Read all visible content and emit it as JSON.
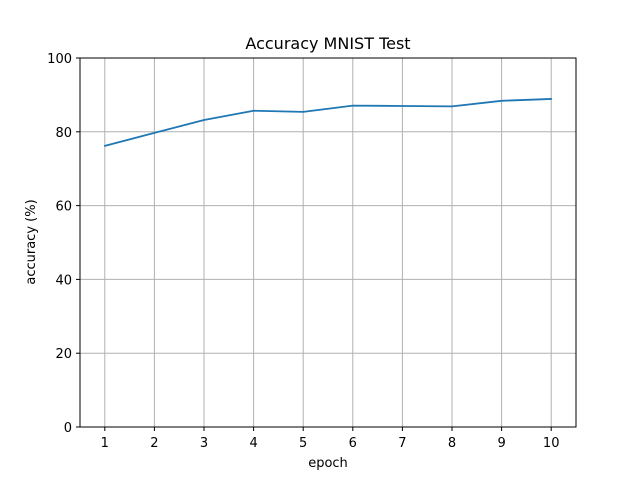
{
  "chart_data": {
    "type": "line",
    "title": "Accuracy MNIST Test",
    "xlabel": "epoch",
    "ylabel": "accuracy (%)",
    "x": [
      1,
      2,
      3,
      4,
      5,
      6,
      7,
      8,
      9,
      10
    ],
    "series": [
      {
        "values": [
          76.2,
          79.7,
          83.2,
          85.7,
          85.4,
          87.1,
          87.0,
          86.9,
          88.4,
          88.9
        ]
      }
    ],
    "xticks": [
      "1",
      "2",
      "3",
      "4",
      "5",
      "6",
      "7",
      "8",
      "9",
      "10"
    ],
    "yticks": [
      "0",
      "20",
      "40",
      "60",
      "80",
      "100"
    ],
    "ylim": [
      0,
      100
    ],
    "xlim": [
      0.5,
      10.5
    ],
    "grid": true,
    "colors": {
      "line": "#1f77b4",
      "grid": "#b0b0b0",
      "axis": "#000000"
    }
  }
}
